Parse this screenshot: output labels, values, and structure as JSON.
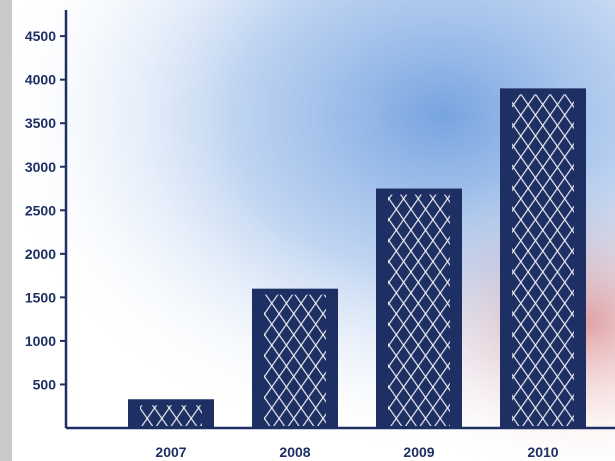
{
  "chart_data": {
    "type": "bar",
    "categories": [
      "2007",
      "2008",
      "2009",
      "2010"
    ],
    "values": [
      330,
      1600,
      2750,
      3900
    ],
    "yticks": [
      "500",
      "1000",
      "1500",
      "2000",
      "2500",
      "3000",
      "3500",
      "4000",
      "4500"
    ],
    "ylim": [
      0,
      4800
    ],
    "title": "",
    "xlabel": "",
    "ylabel": "",
    "grid": false,
    "legend": "none",
    "colors": {
      "bar": "#1e2f63",
      "bar_pattern": "#ffffff",
      "axis": "#1e2f63",
      "background_texture": "#3d7fd4",
      "left_strip": "#c9c9c9"
    }
  }
}
